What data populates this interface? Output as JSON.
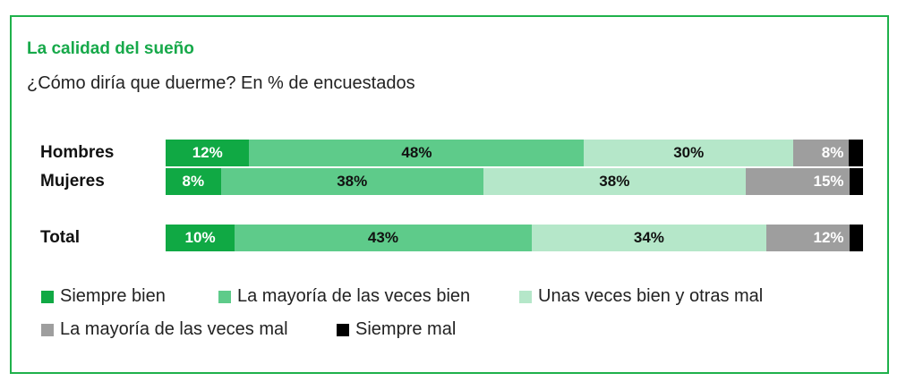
{
  "chart_data": {
    "type": "bar",
    "orientation": "horizontal",
    "stacked": true,
    "title": "La calidad del sueño",
    "subtitle": "¿Cómo diría que duerme? En % de encuestados",
    "categories": [
      "Hombres",
      "Mujeres",
      "Total"
    ],
    "series": [
      {
        "name": "Siempre bien",
        "color": "#10a944",
        "values": [
          12,
          8,
          10
        ],
        "labels": [
          "12%",
          "8%",
          "10%"
        ]
      },
      {
        "name": "La mayoría de las veces bien",
        "color": "#5ecb8a",
        "values": [
          48,
          38,
          43
        ],
        "labels": [
          "48%",
          "38%",
          "43%"
        ]
      },
      {
        "name": "Unas veces bien y otras mal",
        "color": "#b5e7c9",
        "values": [
          30,
          38,
          34
        ],
        "labels": [
          "30%",
          "38%",
          "34%"
        ]
      },
      {
        "name": "La mayoría de las veces mal",
        "color": "#9e9e9e",
        "values": [
          8,
          15,
          12
        ],
        "labels": [
          "8%",
          "15%",
          "12%"
        ]
      },
      {
        "name": "Siempre mal",
        "color": "#000000",
        "values": [
          2,
          2,
          2
        ],
        "labels": [
          "",
          "",
          ""
        ]
      }
    ],
    "legend": "bottom",
    "grid": false
  }
}
